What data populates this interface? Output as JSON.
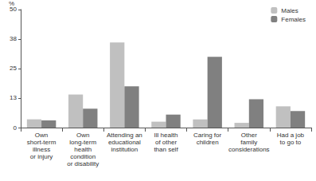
{
  "chart_data": {
    "type": "bar",
    "ylabel": "%",
    "categories": [
      "Own\nshort-term\nillness\nor injury",
      "Own\nlong-term\nhealth\ncondition\nor disability",
      "Attending an\neducational\ninstitution",
      "Ill health\nof other\nthan self",
      "Caring for\nchildren",
      "Other\nfamily\nconsiderations",
      "Had a job\nto go to"
    ],
    "series": [
      {
        "name": "Males",
        "color": "#c0c0c0",
        "values": [
          3.5,
          14,
          36,
          2.5,
          3.5,
          2,
          9
        ]
      },
      {
        "name": "Females",
        "color": "#808080",
        "values": [
          3,
          8,
          17.5,
          5.5,
          30,
          12,
          7
        ]
      }
    ],
    "ylim": [
      0,
      50
    ],
    "yticks": [
      0,
      {
        "value": 12.5,
        "label": "13"
      },
      25,
      {
        "value": 37.5,
        "label": "38"
      },
      50
    ],
    "grid": false,
    "legend": "top-right"
  }
}
